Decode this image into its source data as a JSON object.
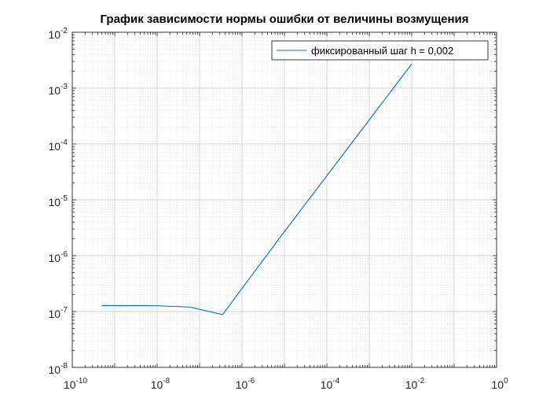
{
  "chart_data": {
    "type": "line",
    "title": "График зависимости нормы ошибки от величины возмущения",
    "xlabel": "",
    "ylabel": "",
    "xscale": "log",
    "yscale": "log",
    "xlim": [
      1e-10,
      1
    ],
    "ylim": [
      1e-08,
      0.01
    ],
    "grid": true,
    "minor_grid": true,
    "legend_position": "top-right",
    "x_ticks": [
      {
        "base": "10",
        "exp": "-10",
        "value": 1e-10
      },
      {
        "base": "10",
        "exp": "-8",
        "value": 1e-08
      },
      {
        "base": "10",
        "exp": "-6",
        "value": 1e-06
      },
      {
        "base": "10",
        "exp": "-4",
        "value": 0.0001
      },
      {
        "base": "10",
        "exp": "-2",
        "value": 0.01
      },
      {
        "base": "10",
        "exp": "0",
        "value": 1
      }
    ],
    "y_ticks": [
      {
        "base": "10",
        "exp": "-8",
        "value": 1e-08
      },
      {
        "base": "10",
        "exp": "-7",
        "value": 1e-07
      },
      {
        "base": "10",
        "exp": "-6",
        "value": 1e-06
      },
      {
        "base": "10",
        "exp": "-5",
        "value": 1e-05
      },
      {
        "base": "10",
        "exp": "-4",
        "value": 0.0001
      },
      {
        "base": "10",
        "exp": "-3",
        "value": 0.001
      },
      {
        "base": "10",
        "exp": "-2",
        "value": 0.01
      }
    ],
    "series": [
      {
        "name": "фиксированный шаг h = 0,002",
        "color": "#0072BD",
        "x": [
          5e-10,
          5e-09,
          1e-08,
          6e-08,
          3.5e-07,
          1e-06,
          1e-05,
          0.0001,
          0.001,
          0.01
        ],
        "y": [
          1.28e-07,
          1.28e-07,
          1.27e-07,
          1.2e-07,
          8.8e-08,
          2.6e-07,
          2.7e-06,
          2.7e-05,
          0.00027,
          0.0027
        ]
      }
    ]
  }
}
